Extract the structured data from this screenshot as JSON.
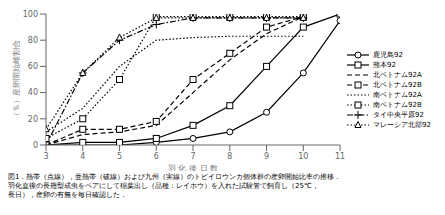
{
  "chart_data": {
    "type": "line",
    "xlabel": "羽 化 後 日 数",
    "ylabel": "（％）産卵開始雌割合",
    "caption": "図1．熱帯（点線），亜熱帯（破線）および九州（実線）のトビイロウンカ個体群の産卵開始比率の推移．\n羽化直後の長翅型成虫をペアにして稲葉出し（品種：レイホウ）を入れた試験管で飼育し（25℃，\n長日），産卵の有無を毎日確認した．",
    "x": [
      3,
      4,
      5,
      6,
      7,
      8,
      9,
      10,
      11
    ],
    "xlim": [
      3,
      11
    ],
    "ylim": [
      0,
      100
    ],
    "xticks": [
      3,
      4,
      5,
      6,
      7,
      8,
      9,
      10,
      11
    ],
    "yticks": [
      0,
      20,
      40,
      60,
      80,
      100
    ],
    "grid": false,
    "legend": "right",
    "series": [
      {
        "name": "鹿児島92",
        "color": "black",
        "line_style": "solid",
        "marker": "circle",
        "values": [
          0,
          0,
          0,
          2,
          5,
          10,
          25,
          55,
          95
        ]
      },
      {
        "name": "熊本92",
        "color": "black",
        "line_style": "solid",
        "marker": "square",
        "values": [
          0,
          2,
          2,
          5,
          15,
          30,
          60,
          90,
          100
        ]
      },
      {
        "name": "北ベトナム92A",
        "color": "black",
        "line_style": "dashed",
        "marker": "none",
        "values": [
          0,
          8,
          10,
          15,
          40,
          65,
          85,
          98,
          null
        ]
      },
      {
        "name": "北ベトナム92B",
        "color": "black",
        "line_style": "dashed",
        "marker": "square",
        "values": [
          0,
          12,
          12,
          18,
          50,
          70,
          90,
          98,
          null
        ]
      },
      {
        "name": "南ベトナム92A",
        "color": "black",
        "line_style": "dotted",
        "marker": "none",
        "values": [
          10,
          28,
          60,
          80,
          82,
          83,
          83,
          83,
          null
        ]
      },
      {
        "name": "南ベトナム92B",
        "color": "black",
        "line_style": "dotted",
        "marker": "square",
        "values": [
          5,
          20,
          50,
          98,
          98,
          98,
          98,
          98,
          null
        ]
      },
      {
        "name": "タイ中央平原92",
        "color": "black",
        "line_style": "dashdot",
        "marker": "plus",
        "values": [
          0,
          55,
          80,
          92,
          97,
          97,
          97,
          97,
          null
        ]
      },
      {
        "name": "マレーシア北部92",
        "color": "black",
        "line_style": "dotted",
        "marker": "triangle",
        "values": [
          12,
          55,
          82,
          97,
          97,
          97,
          97,
          97,
          null
        ]
      }
    ]
  }
}
